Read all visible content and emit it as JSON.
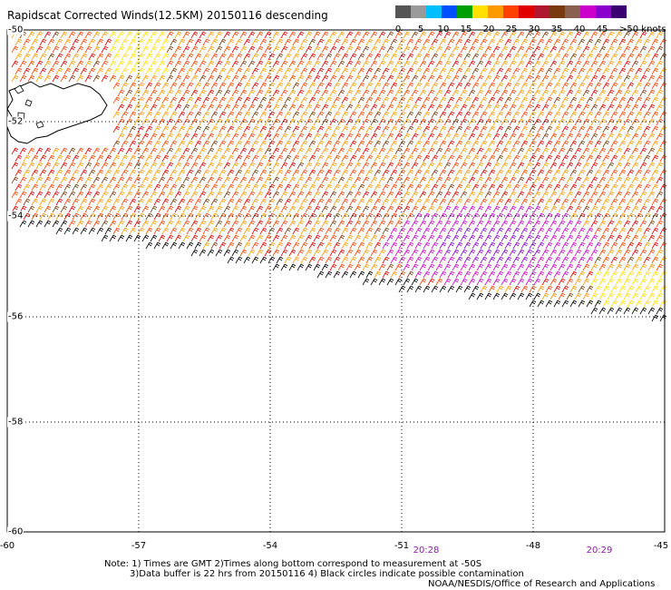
{
  "title": "Rapidscat Corrected Winds(12.5KM) 20150116 descending",
  "legend": {
    "labels": [
      "0",
      "5",
      "10",
      "15",
      "20",
      "25",
      "30",
      "35",
      "40",
      "45",
      ">50 knots"
    ],
    "colors": [
      "#555555",
      "#9a9a9a",
      "#00bfff",
      "#0050ff",
      "#00a000",
      "#ffe000",
      "#ff9900",
      "#ff4000",
      "#e00000",
      "#b01830",
      "#7a3a10",
      "#8a6050",
      "#cc00cc",
      "#8a00cc",
      "#3a0070"
    ]
  },
  "axes": {
    "lon_labels": [
      "-60",
      "-57",
      "-54",
      "-51",
      "-48",
      "-45"
    ],
    "lat_labels": [
      "-50",
      "-52",
      "-54",
      "-56",
      "-58",
      "-60"
    ]
  },
  "times": [
    "20:28",
    "20:29"
  ],
  "notes": {
    "line1": "Note: 1) Times are GMT 2)Times along bottom correspond to measurement at -50S",
    "line2": "3)Data buffer is 22 hrs from 20150116 4) Black circles indicate possible contamination",
    "credit": "NOAA/NESDIS/Office of Research and Applications"
  }
}
